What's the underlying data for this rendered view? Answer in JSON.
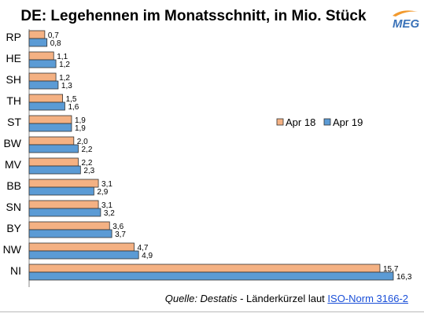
{
  "title": "DE: Legehennen im Monatsschnitt, in Mio. Stück",
  "logo": {
    "text": "MEG",
    "colors": [
      "#3a72b8",
      "#f29a2e"
    ]
  },
  "source": {
    "lead": "Quelle: Destatis",
    "sep": " - Länderkürzel laut ",
    "link": "ISO-Norm 3166-2"
  },
  "chart_data": {
    "type": "bar",
    "orientation": "horizontal",
    "categories": [
      "RP",
      "HE",
      "SH",
      "TH",
      "ST",
      "BW",
      "MV",
      "BB",
      "SN",
      "BY",
      "NW",
      "NI"
    ],
    "series": [
      {
        "name": "Apr 18",
        "color": "#f4b183",
        "values": [
          0.7,
          1.1,
          1.2,
          1.5,
          1.9,
          2.0,
          2.2,
          3.1,
          3.1,
          3.6,
          4.7,
          15.7
        ],
        "labels": [
          "0,7",
          "1,1",
          "1,2",
          "1,5",
          "1,9",
          "2,0",
          "2,2",
          "3,1",
          "3,1",
          "3,6",
          "4,7",
          "15,7"
        ]
      },
      {
        "name": "Apr 19",
        "color": "#5b9bd5",
        "values": [
          0.8,
          1.2,
          1.3,
          1.6,
          1.9,
          2.2,
          2.3,
          2.9,
          3.2,
          3.7,
          4.9,
          16.3
        ],
        "labels": [
          "0,8",
          "1,2",
          "1,3",
          "1,6",
          "1,9",
          "2,2",
          "2,3",
          "2,9",
          "3,2",
          "3,7",
          "4,9",
          "16,3"
        ]
      }
    ],
    "xlim": [
      0,
      16.3
    ],
    "legend": "right",
    "grid": false
  }
}
